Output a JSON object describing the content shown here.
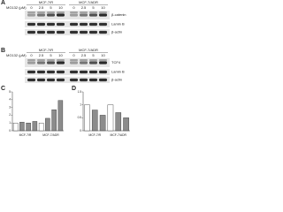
{
  "panels": [
    {
      "label": "A",
      "treatment": "MG132 (μM)",
      "groups": [
        {
          "name": "MCF-7/R",
          "lanes": [
            "0",
            "2.5",
            "5",
            "10"
          ]
        },
        {
          "name": "MCF-7/ADR",
          "lanes": [
            "0",
            "2.5",
            "5",
            "10"
          ]
        }
      ],
      "rows": [
        "β-catenin",
        "Lamin B",
        "β-actin"
      ]
    },
    {
      "label": "B",
      "treatment": "MG132 (μM)",
      "groups": [
        {
          "name": "MCF-7/R",
          "lanes": [
            "0",
            "2.5",
            "5",
            "10"
          ]
        },
        {
          "name": "MCF-7/ADR",
          "lanes": [
            "0",
            "2.5",
            "5",
            "10"
          ]
        }
      ],
      "rows": [
        "TCF4",
        "Lamin B",
        "β-actin"
      ]
    },
    {
      "label": "C",
      "type": "bar",
      "color": "#8c8c8c",
      "groups": [
        "MCF-7/R",
        "MCF-7/ADR"
      ],
      "values": [
        1.0,
        1.1,
        1.0,
        1.2,
        1.0,
        1.6,
        2.7,
        3.9
      ],
      "ylim": [
        0,
        5
      ],
      "yticks": [
        0,
        1,
        2,
        3,
        4,
        5
      ]
    },
    {
      "label": "D",
      "type": "bar",
      "color": "#8c8c8c",
      "groups": [
        "MCF-7/R",
        "MCF-7/ADR"
      ],
      "values": [
        1.0,
        0.8,
        0.6,
        1.0,
        0.7,
        0.5
      ],
      "ylim": [
        0,
        1.5
      ],
      "yticks": [
        0,
        0.5,
        1,
        1.5
      ]
    }
  ]
}
